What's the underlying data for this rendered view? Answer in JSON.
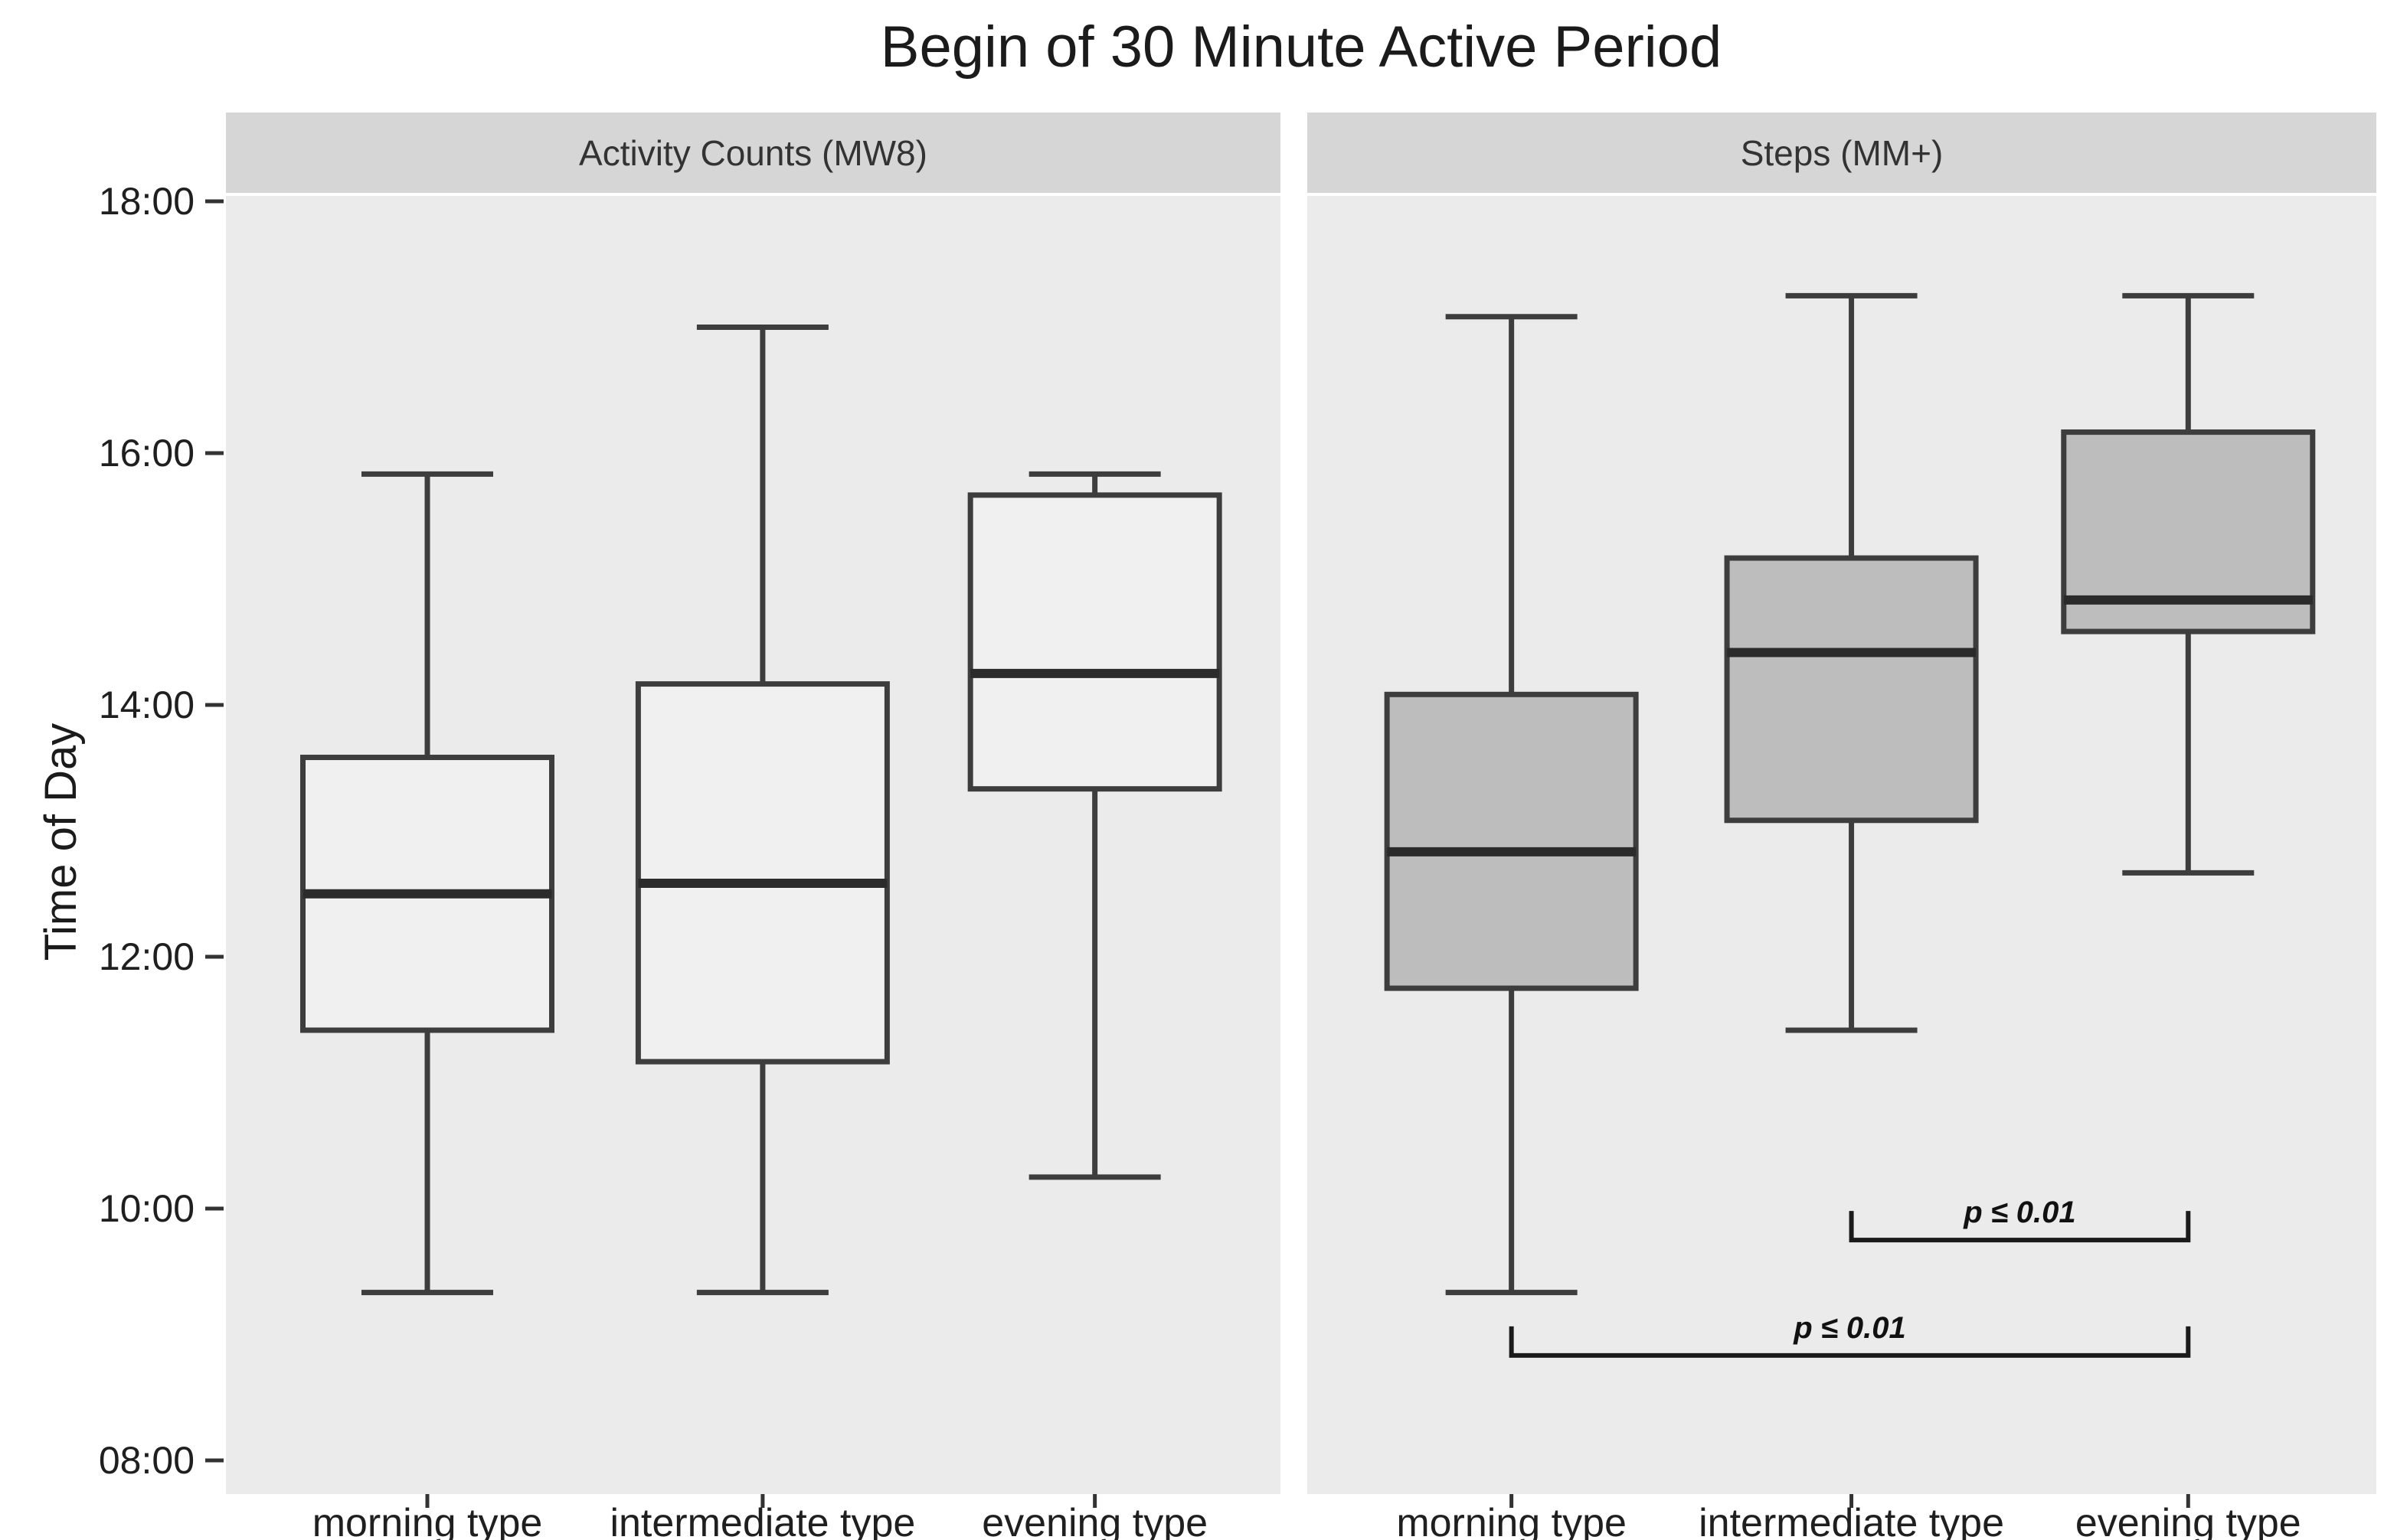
{
  "title": "Begin of 30 Minute Active Period",
  "y_axis": {
    "label": "Time of Day",
    "ticks": [
      "18:00",
      "16:00",
      "14:00",
      "12:00",
      "10:00",
      "08:00"
    ]
  },
  "x_categories": [
    "morning type",
    "intermediate type",
    "evening type"
  ],
  "colors": {
    "panel_bg": "#ebebeb",
    "strip_bg": "#d6d6d6",
    "box_stroke": "#3d3d3d",
    "median_stroke": "#2b2b2b",
    "whisker_stroke": "#3d3d3d",
    "tick_stroke": "#333333",
    "annotation": "#1a1a1a",
    "left_box_fill": "#f0f0f0",
    "right_box_fill": "#bdbdbd"
  },
  "chart_data": {
    "type": "boxplot",
    "title": "Begin of 30 Minute Active Period",
    "ylabel": "Time of Day",
    "y_unit": "time of day (HH:MM)",
    "ylim": [
      "07:45",
      "18:05"
    ],
    "y_tick_labels": [
      "18:00",
      "16:00",
      "14:00",
      "12:00",
      "10:00",
      "08:00"
    ],
    "grid": "off",
    "categories": [
      "morning type",
      "intermediate type",
      "evening type"
    ],
    "facets": [
      {
        "label": "Activity Counts (MW8)",
        "box_fill": "#f0f0f0",
        "boxes": [
          {
            "category": "morning type",
            "min": "09:20",
            "q1": "11:25",
            "median": "12:30",
            "q3": "13:35",
            "max": "15:50"
          },
          {
            "category": "intermediate type",
            "min": "09:20",
            "q1": "11:10",
            "median": "12:35",
            "q3": "14:10",
            "max": "17:00"
          },
          {
            "category": "evening type",
            "min": "10:15",
            "q1": "13:20",
            "median": "14:15",
            "q3": "15:40",
            "max": "15:50"
          }
        ],
        "annotations": []
      },
      {
        "label": "Steps (MM+)",
        "box_fill": "#bdbdbd",
        "boxes": [
          {
            "category": "morning type",
            "min": "09:20",
            "q1": "11:45",
            "median": "12:50",
            "q3": "14:05",
            "max": "17:05"
          },
          {
            "category": "intermediate type",
            "min": "11:25",
            "q1": "13:05",
            "median": "14:25",
            "q3": "15:10",
            "max": "17:15"
          },
          {
            "category": "evening type",
            "min": "12:40",
            "q1": "14:35",
            "median": "14:50",
            "q3": "16:10",
            "max": "17:15"
          }
        ],
        "annotations": [
          {
            "label": "p ≤ 0.01",
            "from": "intermediate type",
            "to": "evening type",
            "line_at": "09:45"
          },
          {
            "label": "p ≤ 0.01",
            "from": "morning type",
            "to": "evening type",
            "line_at": "08:50"
          }
        ]
      }
    ]
  }
}
